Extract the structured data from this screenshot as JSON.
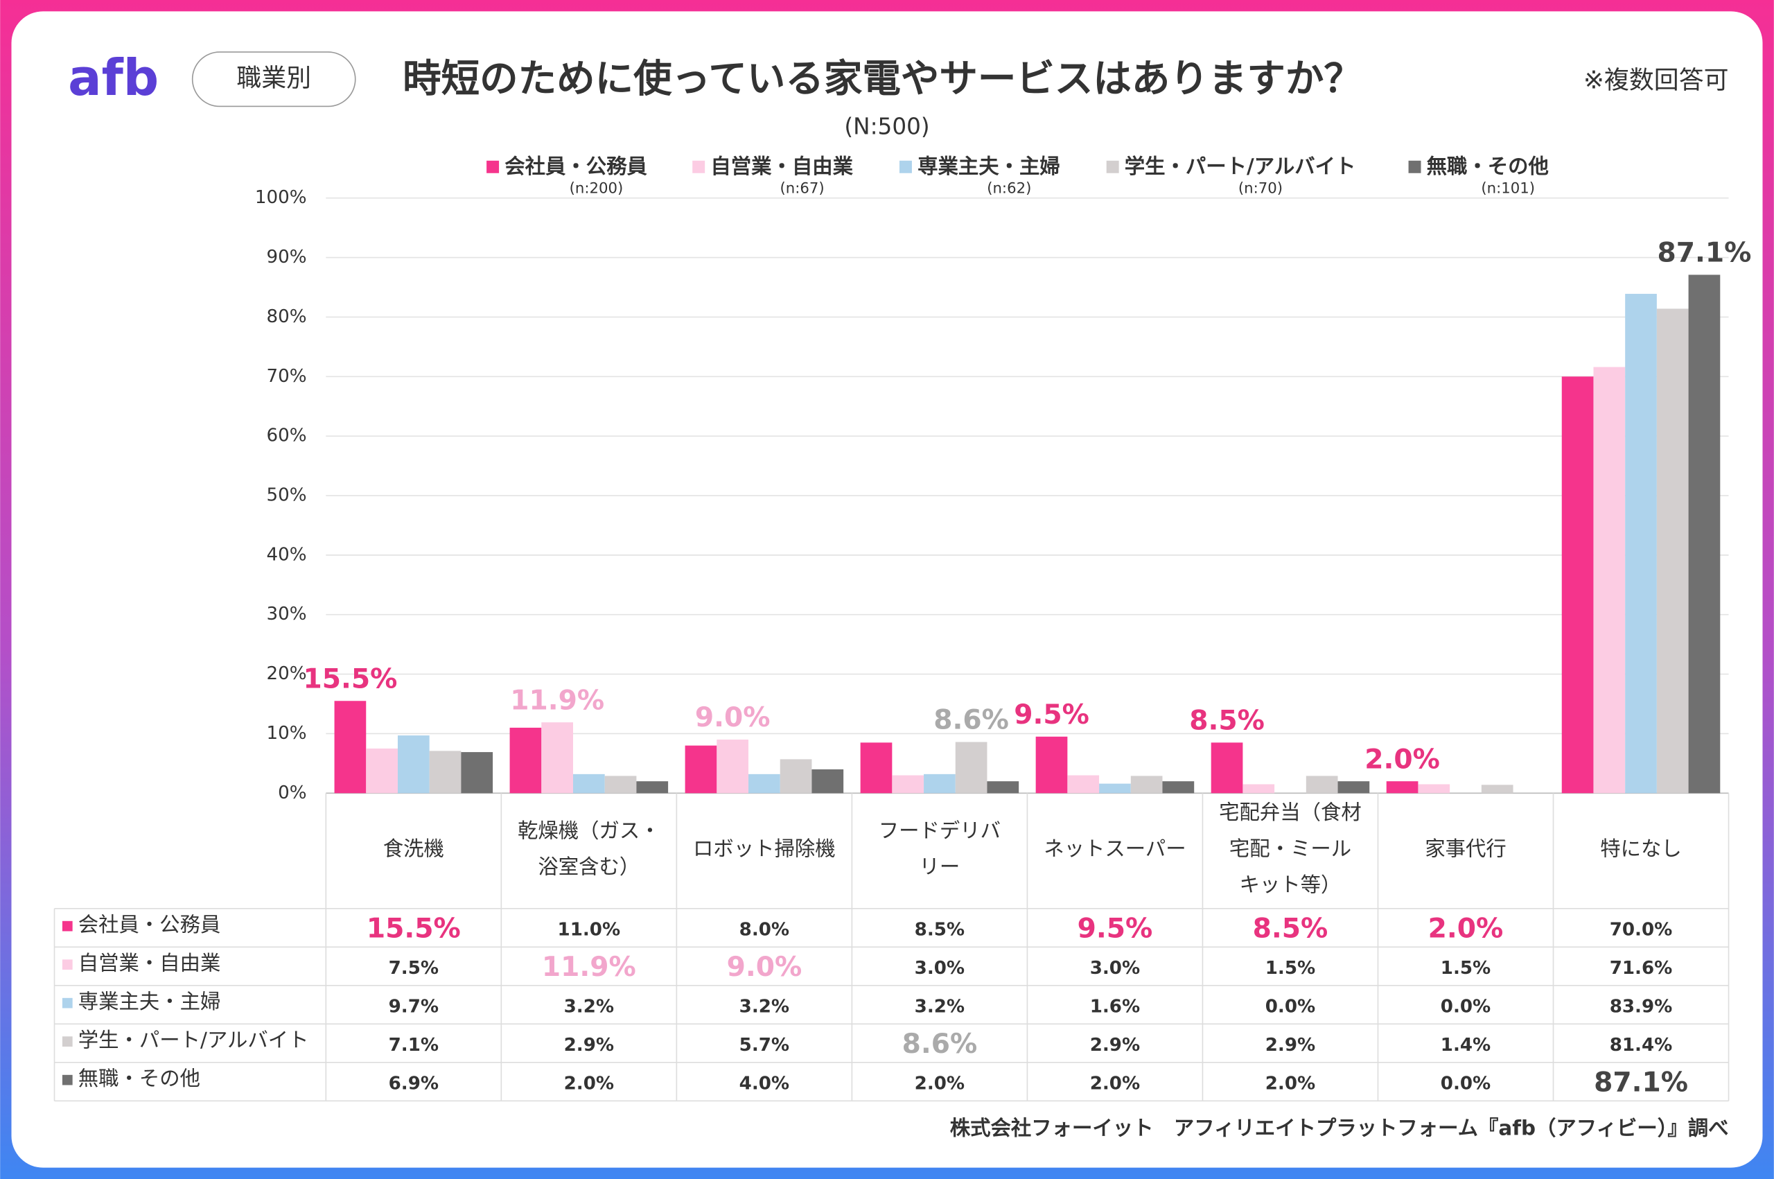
{
  "logo": "afb",
  "tag": "職業別",
  "note": "※複数回答可",
  "footer": "株式会社フォーイット　アフィリエイトプラットフォーム『afb（アフィビー）』調べ",
  "chart_data": {
    "type": "bar",
    "title": "時短のために使っている家電やサービスはありますか？",
    "subtitle": "(N:500)",
    "categories": [
      [
        "食洗機"
      ],
      [
        "乾燥機（ガス・",
        "浴室含む）"
      ],
      [
        "ロボット掃除機"
      ],
      [
        "フードデリバ",
        "リー"
      ],
      [
        "ネットスーパー"
      ],
      [
        "宅配弁当（食材",
        "宅配・ミール",
        "キット等）"
      ],
      [
        "家事代行"
      ],
      [
        "特になし"
      ]
    ],
    "ylim": [
      0,
      100
    ],
    "yticks": [
      {
        "value": 0,
        "label": "0%"
      },
      {
        "value": 10,
        "label": "10%"
      },
      {
        "value": 20,
        "label": "20%"
      },
      {
        "value": 30,
        "label": "30%"
      },
      {
        "value": 40,
        "label": "40%"
      },
      {
        "value": 50,
        "label": "50%"
      },
      {
        "value": 60,
        "label": "60%"
      },
      {
        "value": 70,
        "label": "70%"
      },
      {
        "value": 80,
        "label": "80%"
      },
      {
        "value": 90,
        "label": "90%"
      },
      {
        "value": 100,
        "label": "100%"
      }
    ],
    "grid": true,
    "series": [
      {
        "name": "会社員・公務員",
        "n": "(n:200)",
        "color": "#f5348c",
        "label_color": "#e8337f",
        "values": [
          15.5,
          11.0,
          8.0,
          8.5,
          9.5,
          8.5,
          2.0,
          70.0
        ],
        "value_labels": [
          "15.5%",
          "11.0%",
          "8.0%",
          "8.5%",
          "9.5%",
          "8.5%",
          "2.0%",
          "70.0%"
        ]
      },
      {
        "name": "自営業・自由業",
        "n": "(n:67)",
        "color": "#fccce3",
        "label_color": "#f2a6cc",
        "values": [
          7.5,
          11.9,
          9.0,
          3.0,
          3.0,
          1.5,
          1.5,
          71.6
        ],
        "value_labels": [
          "7.5%",
          "11.9%",
          "9.0%",
          "3.0%",
          "3.0%",
          "1.5%",
          "1.5%",
          "71.6%"
        ]
      },
      {
        "name": "専業主夫・主婦",
        "n": "(n:62)",
        "color": "#aed3ec",
        "label_color": "#7fb3d8",
        "values": [
          9.7,
          3.2,
          3.2,
          3.2,
          1.6,
          0.0,
          0.0,
          83.9
        ],
        "value_labels": [
          "9.7%",
          "3.2%",
          "3.2%",
          "3.2%",
          "1.6%",
          "0.0%",
          "0.0%",
          "83.9%"
        ]
      },
      {
        "name": "学生・パート/アルバイト",
        "n": "(n:70)",
        "color": "#d3cfcf",
        "label_color": "#aaaaaa",
        "values": [
          7.1,
          2.9,
          5.7,
          8.6,
          2.9,
          2.9,
          1.4,
          81.4
        ],
        "value_labels": [
          "7.1%",
          "2.9%",
          "5.7%",
          "8.6%",
          "2.9%",
          "2.9%",
          "1.4%",
          "81.4%"
        ]
      },
      {
        "name": "無職・その他",
        "n": "(n:101)",
        "color": "#707070",
        "label_color": "#444444",
        "values": [
          6.9,
          2.0,
          4.0,
          2.0,
          2.0,
          2.0,
          0.0,
          87.1
        ],
        "value_labels": [
          "6.9%",
          "2.0%",
          "4.0%",
          "2.0%",
          "2.0%",
          "2.0%",
          "0.0%",
          "87.1%"
        ]
      }
    ]
  }
}
